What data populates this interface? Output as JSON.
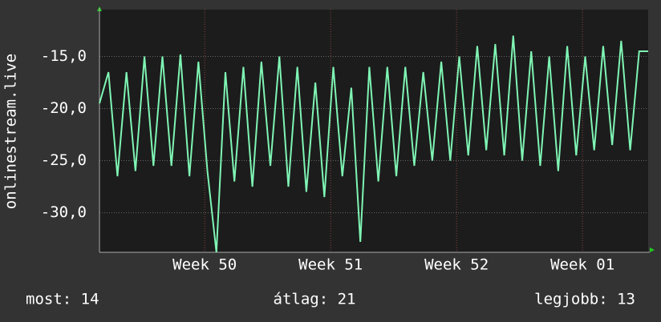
{
  "chart_data": {
    "type": "line",
    "y_label": "onlinestream.live",
    "x": [
      0,
      0.5,
      1,
      1.5,
      2,
      2.5,
      3,
      3.5,
      4,
      4.5,
      5,
      5.5,
      6,
      6.5,
      7,
      7.5,
      8,
      8.5,
      9,
      9.5,
      10,
      10.5,
      11,
      11.5,
      12,
      12.5,
      13,
      13.5,
      14,
      14.5,
      15,
      15.5,
      16,
      16.5,
      17,
      17.5,
      18,
      18.5,
      19,
      19.5,
      20,
      20.5,
      21,
      21.5,
      22,
      22.5,
      23,
      23.5,
      24,
      24.5,
      25,
      25.5,
      26,
      26.5,
      27,
      27.5,
      28,
      28.5,
      29,
      29.5,
      30,
      30.5
    ],
    "series": [
      {
        "color": "#7ff5b4",
        "values": [
          -19.5,
          -16.5,
          -26.5,
          -16.5,
          -26,
          -15,
          -25.5,
          -15,
          -25.5,
          -14.8,
          -26.5,
          -15.5,
          -26,
          -33.8,
          -16.5,
          -27,
          -16,
          -27.5,
          -15.5,
          -25.5,
          -15,
          -27.5,
          -16,
          -28,
          -17.5,
          -28.5,
          -16,
          -26.5,
          -18,
          -32.8,
          -16,
          -27,
          -16,
          -26.5,
          -16,
          -25.5,
          -16.5,
          -25,
          -15.5,
          -25,
          -15,
          -24.5,
          -14,
          -24,
          -13.8,
          -24.5,
          -13,
          -25,
          -14.5,
          -25.5,
          -15,
          -26,
          -14,
          -24.5,
          -15,
          -24,
          -14,
          -23.5,
          -13.5,
          -24,
          -14.5,
          -14.5
        ]
      }
    ],
    "xlim": [
      0,
      30.5
    ],
    "xticks": [
      {
        "value": 5.85,
        "label": "Week 50"
      },
      {
        "value": 12.85,
        "label": "Week 51"
      },
      {
        "value": 19.85,
        "label": "Week 52"
      },
      {
        "value": 26.85,
        "label": "Week 01"
      }
    ],
    "ylim": [
      -33.8,
      -10.5
    ],
    "yticks": [
      {
        "value": -15,
        "label": "-15,0"
      },
      {
        "value": -20,
        "label": "-20,0"
      },
      {
        "value": -25,
        "label": "-25,0"
      },
      {
        "value": -30,
        "label": "-30,0"
      }
    ],
    "grid": true,
    "footer": {
      "current": "most: 14",
      "average": "átlag: 21",
      "best": "legjobb: 13"
    }
  }
}
